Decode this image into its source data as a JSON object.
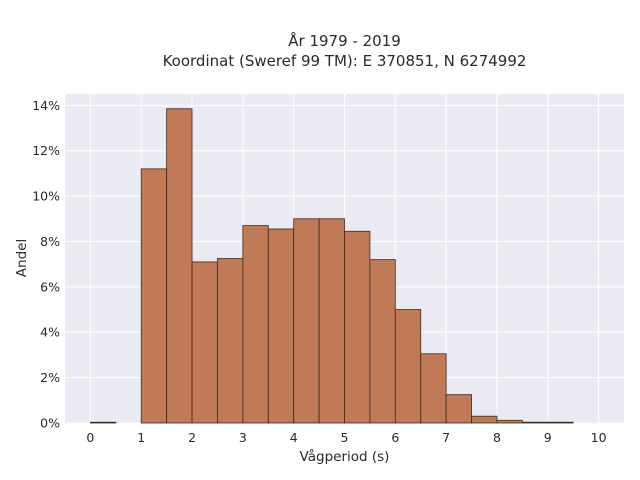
{
  "chart_data": {
    "type": "bar",
    "title_line1": "År 1979 - 2019",
    "title_line2": "Koordinat (Sweref 99 TM): E 370851, N 6274992",
    "xlabel": "Vågperiod (s)",
    "ylabel": "Andel",
    "xlim": [
      -0.5,
      10.5
    ],
    "ylim": [
      0,
      14.5
    ],
    "x_ticks": [
      0,
      1,
      2,
      3,
      4,
      5,
      6,
      7,
      8,
      9,
      10
    ],
    "y_ticks": [
      0,
      2,
      4,
      6,
      8,
      10,
      12,
      14
    ],
    "y_tick_labels": [
      "0%",
      "2%",
      "4%",
      "6%",
      "8%",
      "10%",
      "12%",
      "14%"
    ],
    "bin_width": 0.5,
    "bins": [
      {
        "x0": 0.0,
        "value": 0.02
      },
      {
        "x0": 0.5,
        "value": 0.0
      },
      {
        "x0": 1.0,
        "value": 11.2
      },
      {
        "x0": 1.5,
        "value": 13.85
      },
      {
        "x0": 2.0,
        "value": 7.1
      },
      {
        "x0": 2.5,
        "value": 7.25
      },
      {
        "x0": 3.0,
        "value": 8.7
      },
      {
        "x0": 3.5,
        "value": 8.55
      },
      {
        "x0": 4.0,
        "value": 9.0
      },
      {
        "x0": 4.5,
        "value": 9.0
      },
      {
        "x0": 5.0,
        "value": 8.45
      },
      {
        "x0": 5.5,
        "value": 7.2
      },
      {
        "x0": 6.0,
        "value": 5.0
      },
      {
        "x0": 6.5,
        "value": 3.05
      },
      {
        "x0": 7.0,
        "value": 1.25
      },
      {
        "x0": 7.5,
        "value": 0.3
      },
      {
        "x0": 8.0,
        "value": 0.12
      },
      {
        "x0": 8.5,
        "value": 0.03
      },
      {
        "x0": 9.0,
        "value": 0.02
      },
      {
        "x0": 9.5,
        "value": 0.0
      }
    ],
    "grid": true,
    "bar_color": "#c07a55",
    "plot_background": "#eaeaf2"
  }
}
